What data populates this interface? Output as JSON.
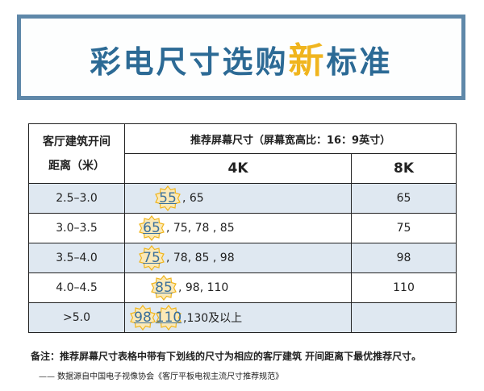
{
  "title": {
    "main": "彩电尺寸选购",
    "highlight": "新",
    "tail": "标准"
  },
  "table": {
    "col_distance": "客厅建筑开间距离（米）",
    "col_recommend": "推荐屏幕尺寸（屏幕宽高比：16：9英寸）",
    "col_4k": "4K",
    "col_8k": "8K",
    "rows": [
      {
        "distance": "2.5–3.0",
        "badges": [
          "55"
        ],
        "rest": ", 65",
        "k8": "65"
      },
      {
        "distance": "3.0–3.5",
        "badges": [
          "65"
        ],
        "rest": ", 75, 78 , 85",
        "k8": "75"
      },
      {
        "distance": "3.5–4.0",
        "badges": [
          "75"
        ],
        "rest": ", 78, 85 , 98",
        "k8": "98"
      },
      {
        "distance": "4.0–4.5",
        "badges": [
          "85"
        ],
        "rest": ", 98, 110",
        "k8": "110"
      },
      {
        "distance": ">5.0",
        "badges": [
          "98",
          "110"
        ],
        "rest": ",130及以上",
        "k8": ""
      }
    ]
  },
  "note": "备注：推荐屏幕尺寸表格中带有下划线的尺寸为相应的客厅建筑 开间距离下最优推荐尺寸。",
  "source": "—— 数据源自中国电子视像协会《客厅平板电视主流尺寸推荐规范》",
  "colors": {
    "accent_blue": "#2c6a95",
    "accent_yellow": "#f0b51e",
    "row_blue": "#dfe8f1"
  }
}
